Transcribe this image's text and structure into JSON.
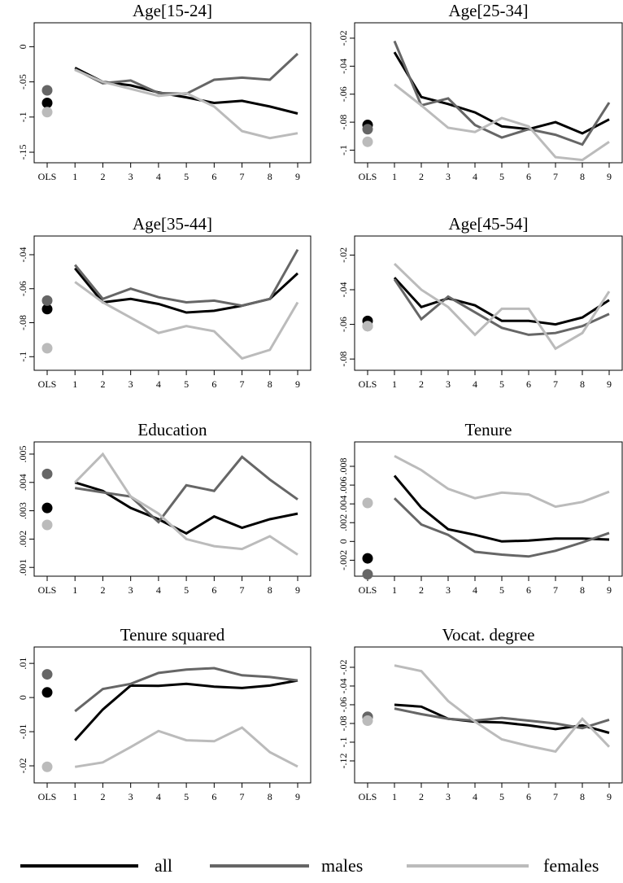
{
  "legend": [
    {
      "name": "all",
      "color": "#000000"
    },
    {
      "name": "males",
      "color": "#666666"
    },
    {
      "name": "females",
      "color": "#bbbbbb"
    }
  ],
  "chart_data": [
    {
      "type": "line",
      "title": "Age[15-24]",
      "categories": [
        "OLS",
        "1",
        "2",
        "3",
        "4",
        "5",
        "6",
        "7",
        "8",
        "9"
      ],
      "series": [
        {
          "values": [
            -0.08,
            -0.03,
            -0.05,
            -0.055,
            -0.065,
            -0.072,
            -0.08,
            -0.077,
            -0.085,
            -0.095
          ]
        },
        {
          "values": [
            -0.062,
            -0.032,
            -0.052,
            -0.048,
            -0.066,
            -0.067,
            -0.047,
            -0.044,
            -0.047,
            -0.01
          ]
        },
        {
          "values": [
            -0.093,
            -0.033,
            -0.05,
            -0.06,
            -0.07,
            -0.066,
            -0.085,
            -0.12,
            -0.13,
            -0.123
          ]
        }
      ],
      "ylim": [
        -0.165,
        0.034
      ],
      "yticks": [
        {
          "value": -0.15,
          "label": "-.15"
        },
        {
          "value": -0.1,
          "label": "-.1"
        },
        {
          "value": -0.05,
          "label": "-.05"
        },
        0
      ]
    },
    {
      "type": "line",
      "title": "Age[25-34]",
      "categories": [
        "OLS",
        "1",
        "2",
        "3",
        "4",
        "5",
        "6",
        "7",
        "8",
        "9"
      ],
      "series": [
        {
          "values": [
            -0.082,
            -0.03,
            -0.062,
            -0.067,
            -0.073,
            -0.083,
            -0.085,
            -0.08,
            -0.088,
            -0.078
          ]
        },
        {
          "values": [
            -0.085,
            -0.022,
            -0.068,
            -0.063,
            -0.082,
            -0.091,
            -0.085,
            -0.089,
            -0.096,
            -0.066
          ]
        },
        {
          "values": [
            -0.094,
            -0.053,
            -0.068,
            -0.084,
            -0.087,
            -0.077,
            -0.083,
            -0.105,
            -0.107,
            -0.094
          ]
        }
      ],
      "ylim": [
        -0.109,
        -0.009
      ],
      "yticks": [
        {
          "value": -0.1,
          "label": "-.1"
        },
        {
          "value": -0.08,
          "label": "-.08"
        },
        {
          "value": -0.06,
          "label": "-.06"
        },
        {
          "value": -0.04,
          "label": "-.04"
        },
        {
          "value": -0.02,
          "label": "-.02"
        }
      ]
    },
    {
      "type": "line",
      "title": "Age[35-44]",
      "categories": [
        "OLS",
        "1",
        "2",
        "3",
        "4",
        "5",
        "6",
        "7",
        "8",
        "9"
      ],
      "series": [
        {
          "values": [
            -0.072,
            -0.048,
            -0.068,
            -0.066,
            -0.069,
            -0.074,
            -0.073,
            -0.07,
            -0.066,
            -0.051
          ]
        },
        {
          "values": [
            -0.067,
            -0.046,
            -0.066,
            -0.06,
            -0.065,
            -0.068,
            -0.067,
            -0.07,
            -0.066,
            -0.037
          ]
        },
        {
          "values": [
            -0.095,
            -0.056,
            -0.068,
            -0.077,
            -0.086,
            -0.082,
            -0.085,
            -0.101,
            -0.096,
            -0.068
          ]
        }
      ],
      "ylim": [
        -0.108,
        -0.029
      ],
      "yticks": [
        {
          "value": -0.1,
          "label": "-.1"
        },
        {
          "value": -0.08,
          "label": "-.08"
        },
        {
          "value": -0.06,
          "label": "-.06"
        },
        {
          "value": -0.04,
          "label": "-.04"
        }
      ]
    },
    {
      "type": "line",
      "title": "Age[45-54]",
      "categories": [
        "OLS",
        "1",
        "2",
        "3",
        "4",
        "5",
        "6",
        "7",
        "8",
        "9"
      ],
      "series": [
        {
          "values": [
            -0.058,
            -0.033,
            -0.05,
            -0.045,
            -0.049,
            -0.058,
            -0.058,
            -0.06,
            -0.056,
            -0.046
          ]
        },
        {
          "values": [
            -0.061,
            -0.034,
            -0.057,
            -0.044,
            -0.053,
            -0.062,
            -0.066,
            -0.065,
            -0.061,
            -0.054
          ]
        },
        {
          "values": [
            -0.061,
            -0.025,
            -0.04,
            -0.05,
            -0.066,
            -0.051,
            -0.051,
            -0.074,
            -0.065,
            -0.041
          ]
        }
      ],
      "ylim": [
        -0.0865,
        -0.009
      ],
      "yticks": [
        {
          "value": -0.08,
          "label": "-.08"
        },
        {
          "value": -0.06,
          "label": "-.06"
        },
        {
          "value": -0.04,
          "label": "-.04"
        },
        {
          "value": -0.02,
          "label": "-.02"
        }
      ]
    },
    {
      "type": "line",
      "title": "Education",
      "categories": [
        "OLS",
        "1",
        "2",
        "3",
        "4",
        "5",
        "6",
        "7",
        "8",
        "9"
      ],
      "series": [
        {
          "values": [
            0.0031,
            0.004,
            0.0037,
            0.0031,
            0.0027,
            0.0022,
            0.0028,
            0.0024,
            0.0027,
            0.0029
          ]
        },
        {
          "values": [
            0.0043,
            0.0038,
            0.00365,
            0.0035,
            0.0026,
            0.0039,
            0.0037,
            0.0049,
            0.0041,
            0.0034
          ]
        },
        {
          "values": [
            0.0025,
            0.004,
            0.005,
            0.0035,
            0.0029,
            0.002,
            0.00175,
            0.00165,
            0.0021,
            0.00145
          ]
        }
      ],
      "ylim": [
        0.00069,
        0.00543
      ],
      "yticks": [
        {
          "value": 0.001,
          "label": ".001"
        },
        {
          "value": 0.002,
          "label": ".002"
        },
        {
          "value": 0.003,
          "label": ".003"
        },
        {
          "value": 0.004,
          "label": ".004"
        },
        {
          "value": 0.005,
          "label": ".005"
        }
      ]
    },
    {
      "type": "line",
      "title": "Tenure",
      "categories": [
        "OLS",
        "1",
        "2",
        "3",
        "4",
        "5",
        "6",
        "7",
        "8",
        "9"
      ],
      "series": [
        {
          "values": [
            -0.0018,
            0.007,
            0.0036,
            0.0013,
            0.0007,
            0,
            0.0001,
            0.0003,
            0.0003,
            0.0002
          ]
        },
        {
          "values": [
            -0.0035,
            0.0046,
            0.0018,
            0.0007,
            -0.0011,
            -0.0014,
            -0.0016,
            -0.001,
            -0.0001,
            0.0009
          ]
        },
        {
          "values": [
            0.0041,
            0.0091,
            0.0076,
            0.0056,
            0.0046,
            0.0052,
            0.005,
            0.0037,
            0.0042,
            0.0053
          ]
        }
      ],
      "ylim": [
        -0.0037,
        0.0106
      ],
      "yticks": [
        {
          "value": -0.002,
          "label": "-.002"
        },
        0,
        {
          "value": 0.002,
          "label": ".002"
        },
        {
          "value": 0.004,
          "label": ".004"
        },
        {
          "value": 0.006,
          "label": ".006"
        },
        {
          "value": 0.008,
          "label": ".008"
        }
      ]
    },
    {
      "type": "line",
      "title": "Tenure squared",
      "categories": [
        "OLS",
        "1",
        "2",
        "3",
        "4",
        "5",
        "6",
        "7",
        "8",
        "9"
      ],
      "series": [
        {
          "values": [
            0.0015,
            -0.0125,
            -0.0035,
            0.0035,
            0.0034,
            0.004,
            0.0032,
            0.0028,
            0.0035,
            0.005
          ]
        },
        {
          "values": [
            0.0068,
            -0.004,
            0.0025,
            0.004,
            0.0072,
            0.0082,
            0.0086,
            0.0065,
            0.006,
            0.005
          ]
        },
        {
          "values": [
            -0.0203,
            -0.0203,
            -0.019,
            -0.0145,
            -0.0098,
            -0.0125,
            -0.0128,
            -0.0088,
            -0.016,
            -0.0202
          ]
        }
      ],
      "ylim": [
        -0.025,
        0.0148
      ],
      "yticks": [
        {
          "value": -0.02,
          "label": "-.02"
        },
        {
          "value": -0.01,
          "label": "-.01"
        },
        0,
        {
          "value": 0.01,
          "label": ".01"
        }
      ]
    },
    {
      "type": "line",
      "title": "Vocat. degree",
      "categories": [
        "OLS",
        "1",
        "2",
        "3",
        "4",
        "5",
        "6",
        "7",
        "8",
        "9"
      ],
      "series": [
        {
          "values": [
            -0.073,
            -0.06,
            -0.062,
            -0.075,
            -0.078,
            -0.079,
            -0.082,
            -0.086,
            -0.082,
            -0.09
          ]
        },
        {
          "values": [
            -0.073,
            -0.064,
            -0.07,
            -0.075,
            -0.077,
            -0.074,
            -0.077,
            -0.08,
            -0.085,
            -0.076
          ]
        },
        {
          "values": [
            -0.077,
            -0.018,
            -0.024,
            -0.056,
            -0.078,
            -0.097,
            -0.104,
            -0.11,
            -0.075,
            -0.105
          ]
        }
      ],
      "ylim": [
        -0.1435,
        0.0017
      ],
      "yticks": [
        {
          "value": -0.12,
          "label": "-.12"
        },
        {
          "value": -0.1,
          "label": "-.1"
        },
        {
          "value": -0.08,
          "label": "-.08"
        },
        {
          "value": -0.06,
          "label": "-.06"
        },
        {
          "value": -0.04,
          "label": "-.04"
        },
        {
          "value": -0.02,
          "label": "-.02"
        }
      ]
    }
  ]
}
